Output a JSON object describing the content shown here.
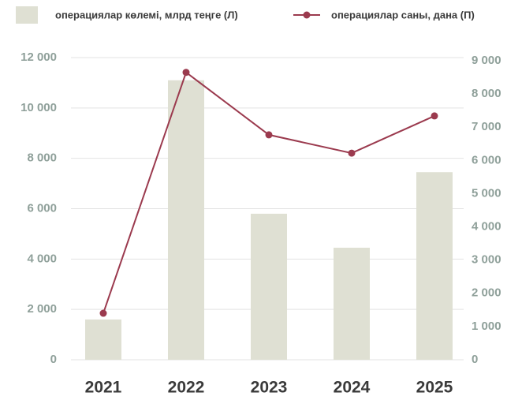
{
  "chart_data": {
    "type": "bar_line",
    "categories": [
      "2021",
      "2022",
      "2023",
      "2024",
      "2025"
    ],
    "series": [
      {
        "name": "операциялар көлемі, млрд теңге (Л)",
        "type": "bar",
        "axis": "y",
        "color": "#dfe0d3",
        "values": [
          1600,
          11100,
          5800,
          4450,
          7450
        ]
      },
      {
        "name": "операциялар саны, дана (П)",
        "type": "line",
        "axis": "y2",
        "color": "#9b3a4e",
        "values": [
          1400,
          8650,
          6770,
          6220,
          7340
        ]
      }
    ],
    "ylim": [
      0,
      12000
    ],
    "yticks": [
      0,
      {
        "value": 2000,
        "label": "2 000"
      },
      {
        "value": 4000,
        "label": "4 000"
      },
      {
        "value": 6000,
        "label": "6 000"
      },
      {
        "value": 8000,
        "label": "8 000"
      },
      {
        "value": 10000,
        "label": "10 000"
      },
      {
        "value": 12000,
        "label": "12 000"
      }
    ],
    "y2lim": [
      0,
      9000
    ],
    "y2ticks": [
      0,
      {
        "value": 1000,
        "label": "1 000"
      },
      {
        "value": 2000,
        "label": "2 000"
      },
      {
        "value": 3000,
        "label": "3 000"
      },
      {
        "value": 4000,
        "label": "4 000"
      },
      {
        "value": 5000,
        "label": "5 000"
      },
      {
        "value": 6000,
        "label": "6 000"
      },
      {
        "value": 7000,
        "label": "7 000"
      },
      {
        "value": 8000,
        "label": "8 000"
      },
      {
        "value": 9000,
        "label": "9 000"
      }
    ],
    "grid": true
  }
}
